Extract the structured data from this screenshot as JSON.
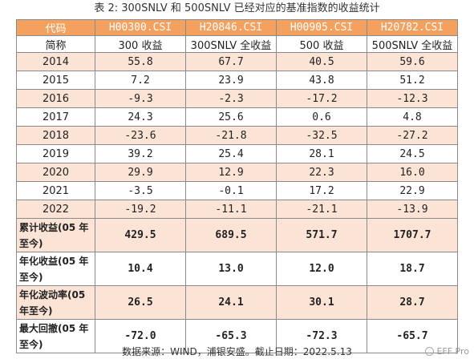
{
  "title": "表 2:  300SNLV 和 500SNLV 已经对应的基准指数的收益统计",
  "header": {
    "first": "代码",
    "codes": [
      "H00300.CSI",
      "H20846.CSI",
      "H00905.CSI",
      "H20782.CSI"
    ]
  },
  "subheader": {
    "first": "简称",
    "names": [
      "300 收益",
      "300SNLV 全收益",
      "500 收益",
      "500SNLV 全收益"
    ]
  },
  "years": [
    {
      "year": "2014",
      "values": [
        "55.8",
        "67.7",
        "40.5",
        "59.6"
      ]
    },
    {
      "year": "2015",
      "values": [
        "7.2",
        "23.9",
        "43.8",
        "51.2"
      ]
    },
    {
      "year": "2016",
      "values": [
        "-9.3",
        "-2.3",
        "-17.2",
        "-12.3"
      ]
    },
    {
      "year": "2017",
      "values": [
        "24.3",
        "25.6",
        "0.6",
        "4.8"
      ]
    },
    {
      "year": "2018",
      "values": [
        "-23.6",
        "-21.8",
        "-32.5",
        "-27.2"
      ]
    },
    {
      "year": "2019",
      "values": [
        "39.2",
        "25.4",
        "28.1",
        "24.5"
      ]
    },
    {
      "year": "2020",
      "values": [
        "29.9",
        "12.9",
        "22.3",
        "16.0"
      ]
    },
    {
      "year": "2021",
      "values": [
        "-3.5",
        "-0.1",
        "17.2",
        "22.9"
      ]
    },
    {
      "year": "2022",
      "values": [
        "-19.2",
        "-11.1",
        "-21.1",
        "-13.9"
      ]
    }
  ],
  "summary": [
    {
      "label": "累计收益(05 年至今)",
      "values": [
        "429.5",
        "689.5",
        "571.7",
        "1707.7"
      ]
    },
    {
      "label": "年化收益(05 年至今)",
      "values": [
        "10.4",
        "13.0",
        "12.0",
        "18.7"
      ]
    },
    {
      "label": "年化波动率(05 年至今)",
      "values": [
        "26.5",
        "24.1",
        "30.1",
        "28.7"
      ]
    },
    {
      "label": "最大回撤(05 年至今)",
      "values": [
        "-72.0",
        "-65.3",
        "-72.3",
        "-65.7"
      ]
    }
  ],
  "source": "数据来源：WIND，浦银安盛。截止日期：2022.5.13",
  "watermark": "EFF Pro"
}
